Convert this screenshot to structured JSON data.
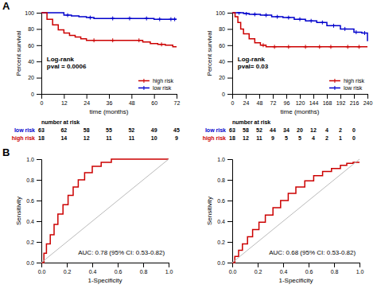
{
  "chart_data": [
    {
      "type": "step",
      "title": "A",
      "xlabel": "time (months)",
      "ylabel": "Percent survival",
      "xlim": [
        0,
        72
      ],
      "ylim": [
        0,
        100
      ],
      "xticks": [
        0,
        12,
        24,
        36,
        48,
        60,
        72
      ],
      "yticks": [
        0,
        20,
        40,
        60,
        80,
        100
      ],
      "legend": "lower right",
      "annotations": [
        "Log-rank\npval = 0.0006"
      ],
      "series": [
        {
          "name": "low risk",
          "color": "#0000cc",
          "marker": "plus",
          "x": [
            0,
            1,
            5,
            8,
            12,
            16,
            20,
            24,
            28,
            36,
            42,
            48,
            54,
            60,
            66,
            72
          ],
          "values": [
            100,
            100,
            100,
            100,
            97,
            96,
            95,
            94,
            93,
            93,
            93,
            93,
            93,
            92,
            92,
            92
          ],
          "censor_x": [
            14,
            26,
            38,
            47,
            56,
            63,
            69,
            71
          ],
          "censor_values": [
            97,
            94,
            93,
            93,
            93,
            92,
            92,
            92
          ]
        },
        {
          "name": "high risk",
          "color": "#cc0000",
          "marker": "plus",
          "x": [
            0,
            3,
            6,
            9,
            12,
            15,
            18,
            21,
            24,
            30,
            36,
            48,
            54,
            58,
            62,
            66,
            70,
            72
          ],
          "values": [
            100,
            92,
            85,
            79,
            75,
            72,
            70,
            68,
            66,
            66,
            66,
            66,
            64,
            62,
            61,
            60,
            58,
            58
          ],
          "censor_x": [
            28,
            38,
            52,
            64
          ],
          "censor_values": [
            66,
            66,
            66,
            61
          ]
        }
      ],
      "risk_table": {
        "title": "number at risk",
        "timepoints": [
          0,
          12,
          24,
          36,
          48,
          60,
          72
        ],
        "series": [
          {
            "name": "low risk",
            "color": "#0000cc",
            "values": [
              63,
              62,
              58,
              55,
              52,
              49,
              45
            ]
          },
          {
            "name": "high risk",
            "color": "#cc0000",
            "values": [
              18,
              14,
              12,
              11,
              11,
              10,
              9
            ]
          }
        ]
      }
    },
    {
      "type": "step",
      "xlabel": "time (months)",
      "ylabel": "Percent survival",
      "xlim": [
        0,
        240
      ],
      "ylim": [
        0,
        100
      ],
      "xticks": [
        0,
        24,
        48,
        72,
        96,
        120,
        144,
        168,
        192,
        216,
        240
      ],
      "yticks": [
        0,
        20,
        40,
        60,
        80,
        100
      ],
      "legend": "lower right",
      "annotations": [
        "Log-rank\npval= 0.03"
      ],
      "series": [
        {
          "name": "low risk",
          "color": "#0000cc",
          "marker": "plus",
          "x": [
            0,
            5,
            10,
            20,
            30,
            50,
            70,
            90,
            110,
            130,
            150,
            168,
            192,
            216,
            230,
            240
          ],
          "values": [
            100,
            100,
            100,
            99,
            98,
            97,
            95,
            94,
            92,
            90,
            88,
            84,
            80,
            76,
            75,
            65
          ],
          "censor_x": [
            12,
            25,
            40,
            60,
            80,
            100,
            120,
            140,
            160,
            180,
            200,
            220,
            235
          ],
          "censor_values": [
            100,
            99,
            98,
            97,
            95,
            94,
            92,
            90,
            88,
            84,
            80,
            76,
            75
          ]
        },
        {
          "name": "high risk",
          "color": "#cc0000",
          "marker": "plus",
          "x": [
            0,
            5,
            10,
            15,
            20,
            30,
            40,
            50,
            60,
            80,
            100,
            120,
            140,
            160,
            180,
            200,
            220,
            240
          ],
          "values": [
            100,
            95,
            88,
            80,
            74,
            68,
            63,
            60,
            58,
            58,
            58,
            58,
            58,
            58,
            58,
            58,
            58,
            58
          ],
          "censor_x": [
            55,
            75,
            100,
            130,
            155,
            175,
            205,
            225
          ],
          "censor_values": [
            60,
            58,
            58,
            58,
            58,
            58,
            58,
            58
          ]
        }
      ],
      "risk_table": {
        "title": "number at risk",
        "timepoints": [
          0,
          24,
          48,
          72,
          96,
          120,
          144,
          168,
          192,
          216
        ],
        "series": [
          {
            "name": "low risk",
            "color": "#0000cc",
            "values": [
              63,
              58,
              52,
              44,
              34,
              20,
              12,
              4,
              2,
              0
            ]
          },
          {
            "name": "high risk",
            "color": "#cc0000",
            "values": [
              18,
              12,
              11,
              9,
              5,
              5,
              4,
              2,
              1,
              0
            ]
          }
        ]
      }
    },
    {
      "type": "line",
      "title": "B",
      "xlabel": "1-Specificity",
      "ylabel": "Sensitivity",
      "xlim": [
        0,
        1
      ],
      "ylim": [
        0,
        1
      ],
      "xticks": [
        {
          "value": 0,
          "label": "0.0"
        },
        0.2,
        0.4,
        0.6,
        0.8,
        {
          "value": 1,
          "label": "1.0"
        }
      ],
      "yticks": [
        {
          "value": 0,
          "label": "0.0"
        },
        0.2,
        0.4,
        0.6,
        0.8,
        {
          "value": 1,
          "label": "1.0"
        }
      ],
      "annotations": [
        "AUC: 0.78 (95% CI: 0.53-0.82)"
      ],
      "series": [
        {
          "color": "#cc0000",
          "x": [
            0.0,
            0.02,
            0.02,
            0.04,
            0.04,
            0.07,
            0.07,
            0.1,
            0.1,
            0.13,
            0.13,
            0.17,
            0.17,
            0.21,
            0.21,
            0.25,
            0.25,
            0.29,
            0.29,
            0.34,
            0.34,
            0.4,
            0.4,
            0.47,
            0.47,
            0.55,
            0.55,
            0.6,
            0.6,
            0.7,
            0.7,
            1.0
          ],
          "values": [
            0.0,
            0.0,
            0.09,
            0.09,
            0.18,
            0.18,
            0.27,
            0.27,
            0.37,
            0.37,
            0.47,
            0.47,
            0.56,
            0.56,
            0.65,
            0.65,
            0.73,
            0.73,
            0.8,
            0.8,
            0.87,
            0.87,
            0.93,
            0.93,
            0.97,
            0.97,
            1.0,
            1.0,
            1.0,
            1.0,
            1.0,
            1.0
          ]
        },
        {
          "color": "#bbbbbb",
          "x": [
            0,
            1
          ],
          "values": [
            0,
            1
          ]
        }
      ]
    },
    {
      "type": "line",
      "xlabel": "1-Specificity",
      "ylabel": "Sensitivity",
      "xlim": [
        0,
        1
      ],
      "ylim": [
        0,
        1
      ],
      "xticks": [
        {
          "value": 0,
          "label": "0.0"
        },
        0.2,
        0.4,
        0.6,
        0.8,
        {
          "value": 1,
          "label": "1.0"
        }
      ],
      "yticks": [
        {
          "value": 0,
          "label": "0.0"
        },
        0.2,
        0.4,
        0.6,
        0.8,
        {
          "value": 1,
          "label": "1.0"
        }
      ],
      "annotations": [
        "AUC: 0.68 (95% CI: 0.53-0.82)"
      ],
      "series": [
        {
          "color": "#cc0000",
          "x": [
            0.0,
            0.02,
            0.02,
            0.05,
            0.05,
            0.08,
            0.08,
            0.12,
            0.12,
            0.16,
            0.16,
            0.21,
            0.21,
            0.26,
            0.26,
            0.32,
            0.32,
            0.38,
            0.38,
            0.44,
            0.44,
            0.5,
            0.5,
            0.57,
            0.57,
            0.64,
            0.64,
            0.71,
            0.71,
            0.78,
            0.78,
            0.85,
            0.85,
            0.9,
            0.9,
            0.95,
            0.95,
            1.0
          ],
          "values": [
            0.0,
            0.0,
            0.06,
            0.06,
            0.12,
            0.12,
            0.18,
            0.18,
            0.25,
            0.25,
            0.32,
            0.32,
            0.39,
            0.39,
            0.46,
            0.46,
            0.53,
            0.53,
            0.6,
            0.6,
            0.67,
            0.67,
            0.73,
            0.73,
            0.79,
            0.79,
            0.84,
            0.84,
            0.88,
            0.88,
            0.91,
            0.91,
            0.94,
            0.94,
            0.96,
            0.96,
            0.97,
            0.97
          ]
        },
        {
          "color": "#bbbbbb",
          "x": [
            0,
            1
          ],
          "values": [
            0,
            1
          ]
        }
      ]
    }
  ]
}
